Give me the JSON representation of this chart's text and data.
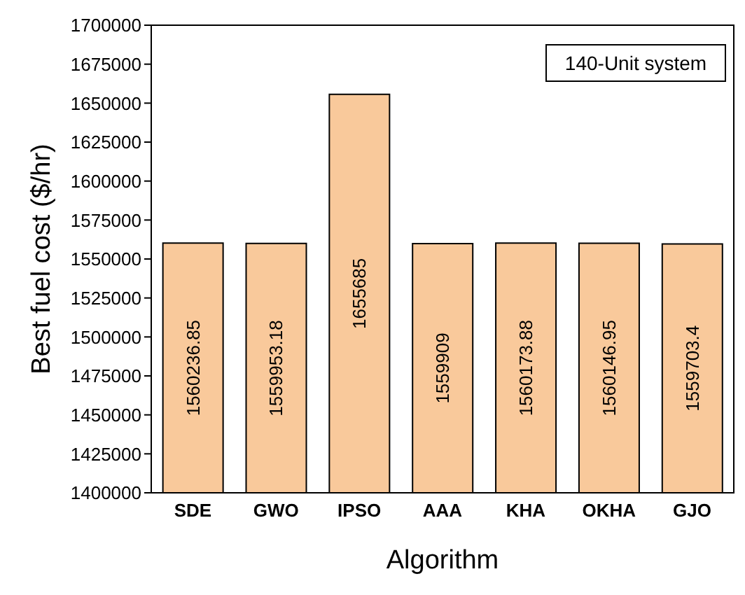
{
  "chart_data": {
    "type": "bar",
    "xlabel": "Algorithm",
    "ylabel": "Best fuel cost ($/hr)",
    "categories": [
      "SDE",
      "GWO",
      "IPSO",
      "AAA",
      "KHA",
      "OKHA",
      "GJO"
    ],
    "values": [
      1560236.85,
      1559953.18,
      1655685,
      1559909,
      1560173.88,
      1560146.95,
      1559703.4
    ],
    "color": "#f9c99b",
    "ylim": [
      1400000,
      1700000
    ],
    "yticks": [
      1400000,
      1425000,
      1450000,
      1475000,
      1500000,
      1525000,
      1550000,
      1575000,
      1600000,
      1625000,
      1650000,
      1675000,
      1700000
    ],
    "data_labels": true,
    "grid": false,
    "annotations": [
      "140-Unit system"
    ]
  }
}
